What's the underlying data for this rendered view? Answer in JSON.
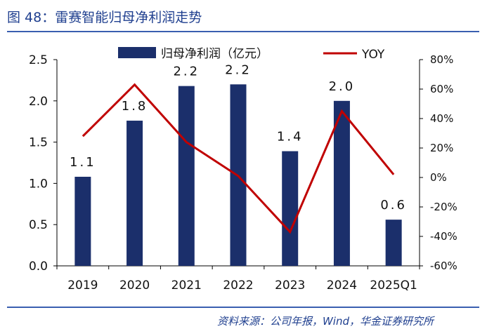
{
  "header": {
    "title": "图 48：雷赛智能归母净利润走势"
  },
  "footer": {
    "source": "资料来源：公司年报，Wind，华金证券研究所"
  },
  "colors": {
    "bar": "#1b2f6b",
    "line": "#c00000",
    "title": "#1f3f8f",
    "axis": "#000000"
  },
  "chart_data": {
    "type": "bar",
    "categories": [
      "2019",
      "2020",
      "2021",
      "2022",
      "2023",
      "2024",
      "2025Q1"
    ],
    "series": [
      {
        "name": "归母净利润（亿元）",
        "type": "bar",
        "axis": "left",
        "values": [
          1.08,
          1.76,
          2.18,
          2.2,
          1.39,
          2.0,
          0.56
        ],
        "data_labels": [
          "1.1",
          "1.8",
          "2.2",
          "2.2",
          "1.4",
          "2.0",
          "0.6"
        ]
      },
      {
        "name": "YOY",
        "type": "line",
        "axis": "right",
        "values": [
          28,
          63,
          24,
          1,
          -37,
          45,
          2
        ]
      }
    ],
    "y_left": {
      "ylim": [
        0,
        2.5
      ],
      "ticks": [
        "0.0",
        "0.5",
        "1.0",
        "1.5",
        "2.0",
        "2.5"
      ]
    },
    "y_right": {
      "ylim": [
        -60,
        80
      ],
      "ticks": [
        "-60%",
        "-40%",
        "-20%",
        "0%",
        "20%",
        "40%",
        "60%",
        "80%"
      ]
    },
    "legend": "top-center",
    "grid": false
  }
}
